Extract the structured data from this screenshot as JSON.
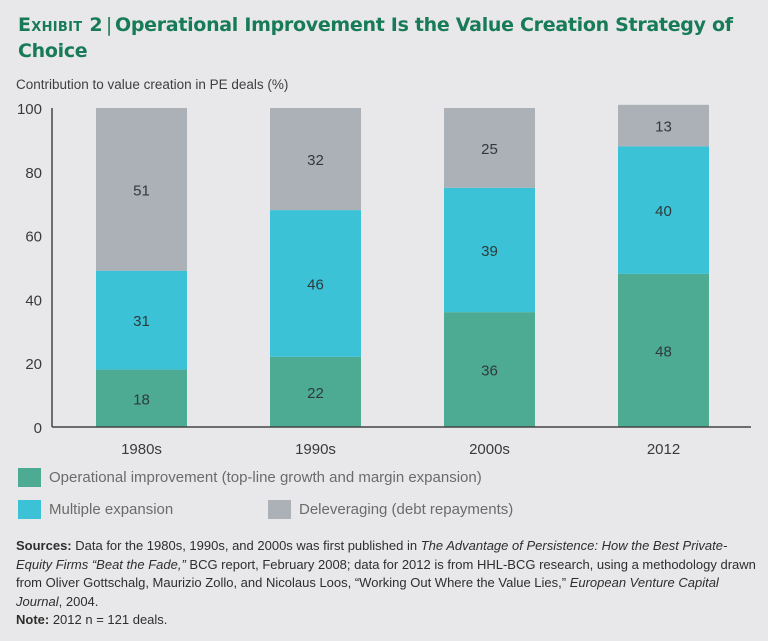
{
  "header": {
    "exhibit_label": "Exhibit 2",
    "separator": "|",
    "title": "Operational Improvement Is the Value Creation Strategy of Choice"
  },
  "colors": {
    "operational": "#4dab93",
    "multiple": "#3cc2d7",
    "deleveraging": "#abb1b7",
    "title": "#177b57",
    "axis": "#444444"
  },
  "chart_data": {
    "type": "bar",
    "stacked": true,
    "title": "Operational Improvement Is the Value Creation Strategy of Choice",
    "ylabel": "Contribution to value creation in PE deals (%)",
    "xlabel": "",
    "categories": [
      "1980s",
      "1990s",
      "2000s",
      "2012"
    ],
    "series": [
      {
        "name": "Operational improvement (top-line growth and margin expansion)",
        "key": "operational",
        "values": [
          18,
          22,
          36,
          48
        ]
      },
      {
        "name": "Multiple expansion",
        "key": "multiple",
        "values": [
          31,
          46,
          39,
          40
        ]
      },
      {
        "name": "Deleveraging (debt repayments)",
        "key": "deleveraging",
        "values": [
          51,
          32,
          25,
          13
        ]
      }
    ],
    "ylim": [
      0,
      100
    ],
    "yticks": [
      0,
      20,
      40,
      60,
      80,
      100
    ],
    "grid": false,
    "legend_position": "bottom"
  },
  "legend": {
    "items": [
      {
        "label": "Operational improvement (top-line growth and margin expansion)",
        "key": "operational"
      },
      {
        "label": "Multiple expansion",
        "key": "multiple"
      },
      {
        "label": "Deleveraging (debt repayments)",
        "key": "deleveraging"
      }
    ]
  },
  "notes": {
    "sources_label": "Sources:",
    "sources_text_1": " Data for the 1980s, 1990s, and 2000s was first published in ",
    "sources_italic_1": "The Advantage of Persistence: How the Best Private-Equity Firms “Beat the Fade,”",
    "sources_text_2": " BCG report, February 2008; data for 2012 is from HHL-BCG research, using a methodology drawn from Oliver Gottschalg, Maurizio Zollo, and Nicolaus Loos, “Working Out Where the Value Lies,” ",
    "sources_italic_2": "European Venture Capital Journal",
    "sources_text_3": ", 2004.",
    "note_label": "Note:",
    "note_text": " 2012 n = 121 deals."
  }
}
